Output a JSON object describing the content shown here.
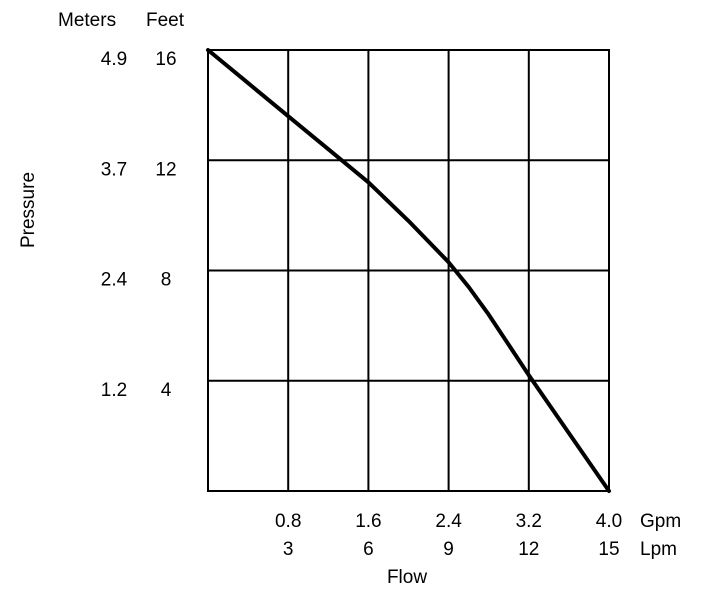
{
  "chart_data": {
    "type": "line",
    "title": "",
    "xlabel": "Flow",
    "ylabel": "Pressure",
    "y_unit_headers": [
      "Meters",
      "Feet"
    ],
    "x_units": [
      "Gpm",
      "Lpm"
    ],
    "x_ticks": [
      {
        "gpm": "0.8",
        "lpm": "3"
      },
      {
        "gpm": "1.6",
        "lpm": "6"
      },
      {
        "gpm": "2.4",
        "lpm": "9"
      },
      {
        "gpm": "3.2",
        "lpm": "12"
      },
      {
        "gpm": "4.0",
        "lpm": "15"
      }
    ],
    "y_ticks": [
      {
        "meters": "4.9",
        "feet": "16"
      },
      {
        "meters": "3.7",
        "feet": "12"
      },
      {
        "meters": "2.4",
        "feet": "8"
      },
      {
        "meters": "1.2",
        "feet": "4"
      }
    ],
    "xlim": [
      0,
      4.0
    ],
    "ylim": [
      0,
      16
    ],
    "grid": true,
    "series": [
      {
        "x": [
          0,
          0.4,
          0.8,
          1.2,
          1.6,
          2.0,
          2.4,
          2.6,
          2.8,
          3.0,
          3.2,
          3.6,
          4.0
        ],
        "y": [
          16,
          14.8,
          13.6,
          12.4,
          11.2,
          9.8,
          8.3,
          7.4,
          6.4,
          5.3,
          4.2,
          2.1,
          0
        ],
        "color": "#000000"
      }
    ]
  }
}
